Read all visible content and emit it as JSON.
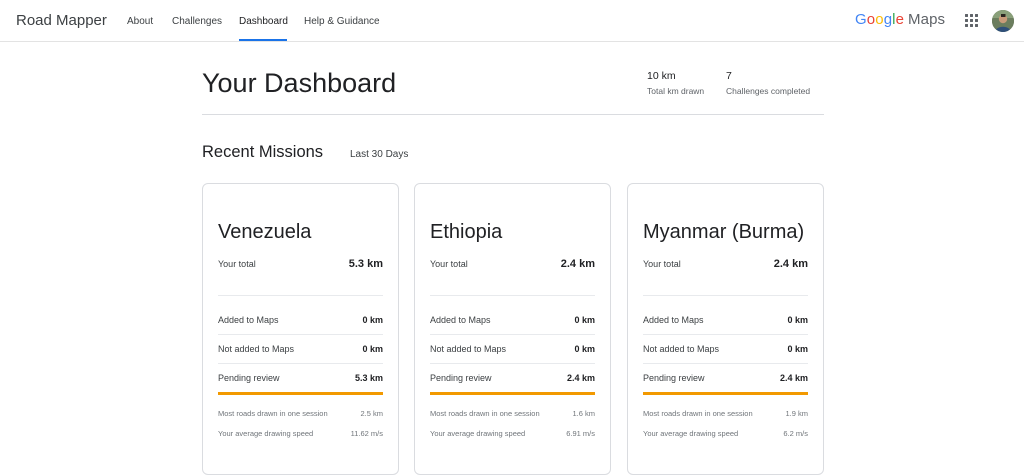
{
  "nav": {
    "brand": "Road Mapper",
    "items": [
      {
        "label": "About"
      },
      {
        "label": "Challenges"
      },
      {
        "label": "Dashboard",
        "active": true
      },
      {
        "label": "Help & Guidance"
      }
    ],
    "google_letters": [
      "G",
      "o",
      "o",
      "g",
      "l",
      "e"
    ],
    "google_colors": [
      "#4285F4",
      "#EA4335",
      "#FBBC05",
      "#4285F4",
      "#34A853",
      "#EA4335"
    ],
    "maps": "Maps",
    "accent_color": "#1a73e8",
    "icons": [
      "apps-grid-icon",
      "avatar"
    ]
  },
  "dashboard": {
    "title": "Your Dashboard",
    "stats": [
      {
        "value": "10 km",
        "label": "Total km drawn"
      },
      {
        "value": "7",
        "label": "Challenges completed"
      }
    ]
  },
  "missions": {
    "title": "Recent Missions",
    "period": "Last 30 Days",
    "progress_color": "#f29900",
    "cards": [
      {
        "country": "Venezuela",
        "total_label": "Your total",
        "total": "5.3 km",
        "added_label": "Added to Maps",
        "added": "0 km",
        "not_added_label": "Not added to Maps",
        "not_added": "0 km",
        "pending_label": "Pending review",
        "pending": "5.3 km",
        "pending_fraction": 1.0,
        "most_label": "Most roads drawn in one session",
        "most": "2.5 km",
        "speed_label": "Your average drawing speed",
        "speed": "11.62 m/s"
      },
      {
        "country": "Ethiopia",
        "total_label": "Your total",
        "total": "2.4 km",
        "added_label": "Added to Maps",
        "added": "0 km",
        "not_added_label": "Not added to Maps",
        "not_added": "0 km",
        "pending_label": "Pending review",
        "pending": "2.4 km",
        "pending_fraction": 1.0,
        "most_label": "Most roads drawn in one session",
        "most": "1.6 km",
        "speed_label": "Your average drawing speed",
        "speed": "6.91 m/s"
      },
      {
        "country": "Myanmar (Burma)",
        "total_label": "Your total",
        "total": "2.4 km",
        "added_label": "Added to Maps",
        "added": "0 km",
        "not_added_label": "Not added to Maps",
        "not_added": "0 km",
        "pending_label": "Pending review",
        "pending": "2.4 km",
        "pending_fraction": 1.0,
        "most_label": "Most roads drawn in one session",
        "most": "1.9 km",
        "speed_label": "Your average drawing speed",
        "speed": "6.2 m/s"
      }
    ]
  }
}
